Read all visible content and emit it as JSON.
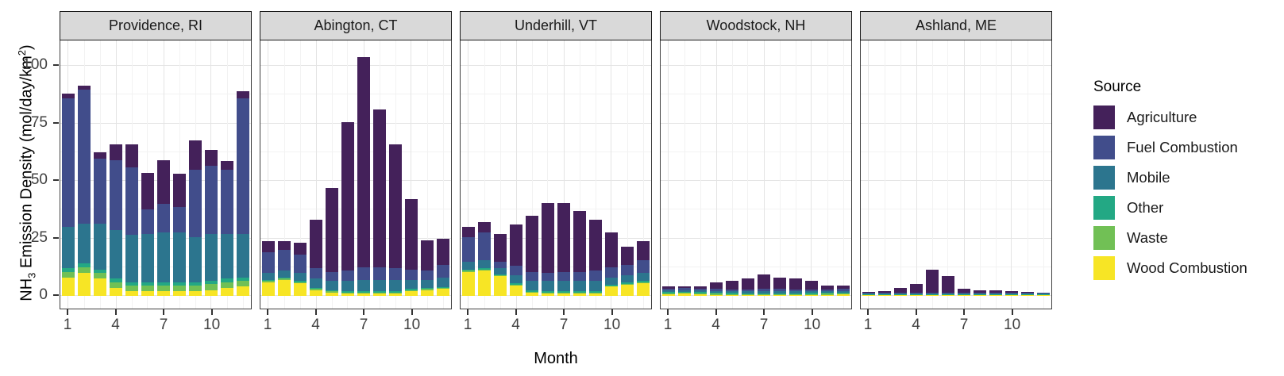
{
  "figure": {
    "description": "Faceted stacked bar chart of monthly ammonia emission density by source for five New England sites"
  },
  "axes": {
    "x_title": "Month",
    "y_title_parts": {
      "pre": "NH",
      "sub": "3",
      "mid": " Emission Density (mol/day/km",
      "sup": "2",
      "post": ")"
    }
  },
  "legend": {
    "title": "Source",
    "entries": [
      "Agriculture",
      "Fuel Combustion",
      "Mobile",
      "Other",
      "Waste",
      "Wood Combustion"
    ]
  },
  "chart_data": {
    "type": "bar",
    "stacked": true,
    "title": "",
    "xlabel": "Month",
    "ylabel": "NH3 Emission Density (mol/day/km2)",
    "x": [
      1,
      2,
      3,
      4,
      5,
      6,
      7,
      8,
      9,
      10,
      11,
      12
    ],
    "xticks": [
      1,
      4,
      7,
      10
    ],
    "yticks": [
      0,
      25,
      50,
      75,
      100
    ],
    "yticks_minor": [
      12.5,
      37.5,
      62.5,
      87.5
    ],
    "ylim": [
      0,
      110
    ],
    "grid": true,
    "legend_position": "right",
    "legend_title": "Source",
    "series_bottom_to_top": [
      "Wood Combustion",
      "Waste",
      "Other",
      "Mobile",
      "Fuel Combustion",
      "Agriculture"
    ],
    "colors": {
      "Agriculture": "#44215a",
      "Fuel Combustion": "#414d8b",
      "Mobile": "#2c758e",
      "Other": "#23a884",
      "Waste": "#71c055",
      "Wood Combustion": "#f7e525"
    },
    "strip_bg": "#d9d9d9",
    "facets": [
      {
        "label": "Providence, RI",
        "series": {
          "Wood Combustion": [
            8,
            10,
            7.5,
            3.5,
            2,
            2,
            2,
            2,
            2,
            2.5,
            3.5,
            4
          ],
          "Waste": [
            2.5,
            2.5,
            2.5,
            2.5,
            2.5,
            2.5,
            2.5,
            2.5,
            2.5,
            2.5,
            2.5,
            2.5
          ],
          "Other": [
            1.5,
            1.5,
            1.5,
            1.5,
            1.5,
            1.5,
            1.5,
            1.5,
            1.5,
            1.5,
            1.5,
            1.5
          ],
          "Mobile": [
            18,
            17.5,
            20,
            21,
            20.5,
            21,
            21.5,
            21.5,
            19.5,
            20.5,
            19.5,
            19
          ],
          "Fuel Combustion": [
            56,
            58,
            28,
            30.5,
            29.5,
            10.5,
            12.5,
            11,
            29.5,
            29.5,
            28,
            59
          ],
          "Agriculture": [
            2,
            2,
            3,
            7,
            10,
            16,
            19,
            14.5,
            12.5,
            7,
            3.5,
            3
          ]
        }
      },
      {
        "label": "Abington, CT",
        "series": {
          "Wood Combustion": [
            6,
            7,
            5.5,
            2.5,
            1.5,
            1,
            1,
            1,
            1,
            2,
            2.5,
            3
          ],
          "Waste": [
            0.5,
            0.5,
            0.5,
            0.5,
            0.5,
            0.4,
            0.4,
            0.4,
            0.4,
            0.5,
            0.5,
            0.5
          ],
          "Other": [
            0.5,
            0.5,
            0.5,
            0.5,
            0.5,
            0.6,
            0.6,
            0.6,
            0.6,
            0.5,
            0.5,
            0.5
          ],
          "Mobile": [
            3,
            3,
            3.5,
            4,
            4,
            4.5,
            5,
            5,
            5,
            4,
            3.5,
            4
          ],
          "Fuel Combustion": [
            9,
            9,
            8,
            4.5,
            4,
            4.5,
            5.5,
            5.5,
            5,
            4.5,
            4,
            5.5
          ],
          "Agriculture": [
            5,
            4,
            5,
            21,
            36.5,
            64.5,
            91.5,
            68.5,
            54,
            30.5,
            13,
            11.5
          ]
        }
      },
      {
        "label": "Underhill, VT",
        "series": {
          "Wood Combustion": [
            10.5,
            11,
            8.5,
            4.5,
            1.5,
            1,
            1,
            1,
            1,
            4,
            5,
            5.5
          ],
          "Waste": [
            0.4,
            0.4,
            0.4,
            0.4,
            0.3,
            0.3,
            0.3,
            0.3,
            0.3,
            0.3,
            0.3,
            0.4
          ],
          "Other": [
            0.6,
            0.6,
            0.6,
            0.6,
            0.7,
            0.7,
            0.7,
            0.7,
            0.7,
            0.7,
            0.7,
            0.6
          ],
          "Mobile": [
            3.5,
            3.5,
            2.5,
            3.5,
            4,
            4.5,
            4.5,
            4.5,
            4.5,
            3,
            3,
            3.5
          ],
          "Fuel Combustion": [
            10.5,
            12,
            3,
            4,
            4,
            3.5,
            4,
            4,
            4.5,
            4.5,
            4.5,
            5.5
          ],
          "Agriculture": [
            4.5,
            4.5,
            12,
            18,
            24.5,
            30.5,
            30,
            26.5,
            22,
            15,
            8,
            8.5
          ]
        }
      },
      {
        "label": "Woodstock, NH",
        "series": {
          "Wood Combustion": [
            0.8,
            0.9,
            0.8,
            0.5,
            0.4,
            0.3,
            0.3,
            0.3,
            0.3,
            0.4,
            0.5,
            0.6
          ],
          "Waste": [
            0.4,
            0.4,
            0.4,
            0.4,
            0.4,
            0.4,
            0.4,
            0.4,
            0.4,
            0.4,
            0.4,
            0.4
          ],
          "Other": [
            0.4,
            0.4,
            0.4,
            0.4,
            0.4,
            0.4,
            0.4,
            0.4,
            0.4,
            0.4,
            0.4,
            0.4
          ],
          "Mobile": [
            0.8,
            0.8,
            0.8,
            0.9,
            0.9,
            1,
            1,
            1,
            0.9,
            0.9,
            0.8,
            0.8
          ],
          "Fuel Combustion": [
            0.8,
            0.8,
            0.8,
            0.8,
            0.8,
            0.8,
            0.9,
            0.9,
            0.9,
            0.8,
            0.8,
            0.8
          ],
          "Agriculture": [
            0.8,
            1,
            1.1,
            2.8,
            3.6,
            4.6,
            6.3,
            4.8,
            4.6,
            3.6,
            1.6,
            1.5
          ]
        }
      },
      {
        "label": "Ashland, ME",
        "series": {
          "Wood Combustion": [
            0.3,
            0.3,
            0.3,
            0.2,
            0.2,
            0.2,
            0.2,
            0.2,
            0.2,
            0.2,
            0.2,
            0.2
          ],
          "Waste": [
            0.2,
            0.2,
            0.2,
            0.2,
            0.2,
            0.2,
            0.2,
            0.2,
            0.2,
            0.2,
            0.2,
            0.2
          ],
          "Other": [
            0.2,
            0.2,
            0.2,
            0.2,
            0.2,
            0.2,
            0.2,
            0.2,
            0.2,
            0.2,
            0.2,
            0.2
          ],
          "Mobile": [
            0.3,
            0.3,
            0.3,
            0.3,
            0.3,
            0.3,
            0.4,
            0.3,
            0.3,
            0.3,
            0.3,
            0.3
          ],
          "Fuel Combustion": [
            0.3,
            0.3,
            0.3,
            0.3,
            0.3,
            0.3,
            0.4,
            0.3,
            0.3,
            0.3,
            0.3,
            0.3
          ],
          "Agriculture": [
            0.5,
            0.7,
            2.2,
            3.8,
            10.3,
            7.3,
            1.6,
            1.3,
            1.3,
            0.8,
            0.5,
            0.3
          ]
        }
      }
    ]
  }
}
